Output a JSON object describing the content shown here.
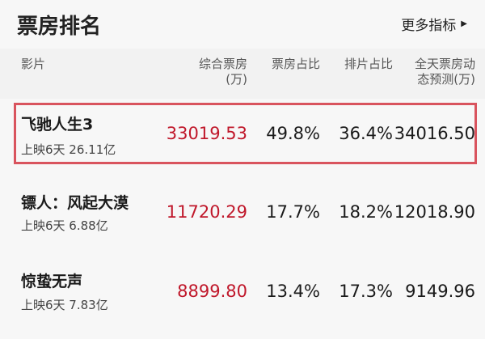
{
  "header": {
    "title": "票房排名",
    "more_label": "更多指标",
    "more_icon": "triangle-right-icon"
  },
  "columns": {
    "film": "影片",
    "total_line1": "综合票房",
    "total_line2": "(万)",
    "box_share": "票房占比",
    "screen_share": "排片占比",
    "forecast_line1": "全天票房动",
    "forecast_line2": "态预测(万)"
  },
  "highlight_color": "#d9545e",
  "value_color": "#c0182b",
  "rows": [
    {
      "name": "飞驰人生3",
      "sub": "上映6天  26.11亿",
      "total": "33019.53",
      "box_share": "49.8%",
      "screen_share": "36.4%",
      "forecast": "34016.50",
      "highlighted": true
    },
    {
      "name": "镖人：风起大漠",
      "sub": "上映6天  6.88亿",
      "total": "11720.29",
      "box_share": "17.7%",
      "screen_share": "18.2%",
      "forecast": "12018.90"
    },
    {
      "name": "惊蛰无声",
      "sub": "上映6天  7.83亿",
      "total": "8899.80",
      "box_share": "13.4%",
      "screen_share": "17.3%",
      "forecast": "9149.96"
    }
  ]
}
